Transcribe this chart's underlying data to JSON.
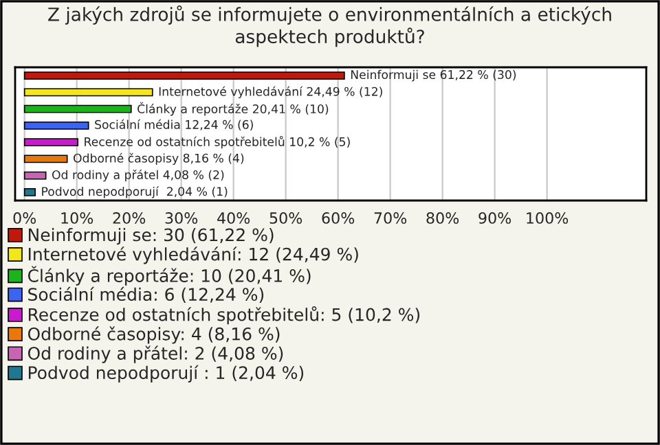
{
  "chart_data": {
    "type": "bar",
    "orientation": "horizontal",
    "title": "Z jakých zdrojů se informujete o environmentálních a etických aspektech produktů?",
    "categories": [
      null,
      null,
      null,
      null,
      null,
      null,
      null,
      null
    ],
    "series": [
      {
        "name": "Neinformuji se: 30 (61,22 %)",
        "color": "#c0180c",
        "values": [
          61.22,
          null,
          null,
          null,
          null,
          null,
          null,
          null
        ],
        "value_labels": [
          "Neinformuji se 61,22 % (30)",
          null,
          null,
          null,
          null,
          null,
          null,
          null
        ]
      },
      {
        "name": "Internetové vyhledávání: 12 (24,49 %)",
        "color": "#f4e61c",
        "values": [
          null,
          24.49,
          null,
          null,
          null,
          null,
          null,
          null
        ],
        "value_labels": [
          null,
          "Internetové vyhledávání 24,49 % (12)",
          null,
          null,
          null,
          null,
          null,
          null
        ]
      },
      {
        "name": "Články a reportáže: 10 (20,41 %)",
        "color": "#1cb41c",
        "values": [
          null,
          null,
          20.41,
          null,
          null,
          null,
          null,
          null
        ],
        "value_labels": [
          null,
          null,
          "Články a reportáže 20,41 % (10)",
          null,
          null,
          null,
          null,
          null
        ]
      },
      {
        "name": "Sociální média: 6 (12,24 %)",
        "color": "#3c64f0",
        "values": [
          null,
          null,
          null,
          12.24,
          null,
          null,
          null,
          null
        ],
        "value_labels": [
          null,
          null,
          null,
          "Sociální média 12,24 % (6)",
          null,
          null,
          null,
          null
        ]
      },
      {
        "name": "Recenze od ostatních spotřebitelů: 5 (10,2 %)",
        "color": "#c81ccc",
        "values": [
          null,
          null,
          null,
          null,
          10.2,
          null,
          null,
          null
        ],
        "value_labels": [
          null,
          null,
          null,
          null,
          "Recenze od ostatních spotřebitelů 10,2 % (5)",
          null,
          null,
          null
        ]
      },
      {
        "name": "Odborné časopisy: 4 (8,16 %)",
        "color": "#e8780c",
        "values": [
          null,
          null,
          null,
          null,
          null,
          8.16,
          null,
          null
        ],
        "value_labels": [
          null,
          null,
          null,
          null,
          null,
          "Odborné časopisy 8,16 % (4)",
          null,
          null
        ]
      },
      {
        "name": "Od rodiny a přátel: 2 (4,08 %)",
        "color": "#c864b4",
        "values": [
          null,
          null,
          null,
          null,
          null,
          null,
          4.08,
          null
        ],
        "value_labels": [
          null,
          null,
          null,
          null,
          null,
          null,
          "Od rodiny a přátel 4,08 % (2)",
          null
        ]
      },
      {
        "name": "Podvod nepodporují : 1 (2,04 %)",
        "color": "#207890",
        "values": [
          null,
          null,
          null,
          null,
          null,
          null,
          null,
          2.04
        ],
        "value_labels": [
          null,
          null,
          null,
          null,
          null,
          null,
          null,
          "Podvod nepodporují  2,04 % (1)"
        ]
      }
    ],
    "xlim": [
      -1.8,
      119
    ],
    "xticks": [
      {
        "value": 0,
        "label": "0%"
      },
      {
        "value": 10,
        "label": "10%"
      },
      {
        "value": 20,
        "label": "20%"
      },
      {
        "value": 30,
        "label": "30%"
      },
      {
        "value": 40,
        "label": "40%"
      },
      {
        "value": 50,
        "label": "50%"
      },
      {
        "value": 60,
        "label": "60%"
      },
      {
        "value": 70,
        "label": "70%"
      },
      {
        "value": 80,
        "label": "80%"
      },
      {
        "value": 90,
        "label": "90%"
      },
      {
        "value": 100,
        "label": "100%"
      }
    ],
    "grid": "x",
    "legend": "bottom"
  }
}
